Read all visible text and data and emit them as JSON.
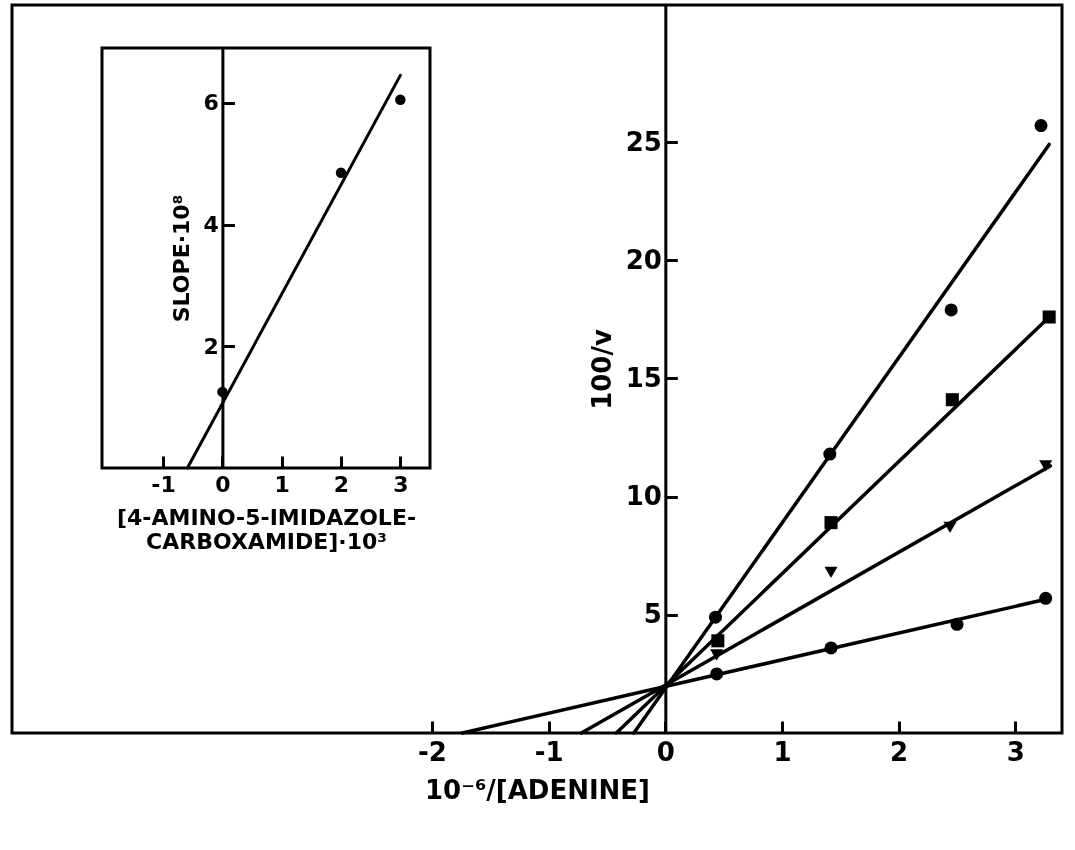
{
  "chart_data": [
    {
      "type": "scatter",
      "xlabel": "10⁻⁶/[ADENINE]",
      "ylabel": "100/v",
      "xlim": [
        -5.6,
        3.4
      ],
      "xticks": [
        -2,
        -1,
        0,
        1,
        2,
        3
      ],
      "ylim": [
        0,
        30.8
      ],
      "yticks": [
        5,
        10,
        15,
        20,
        25
      ],
      "series": [
        {
          "type": "scatter",
          "marker": "circle",
          "color": "#000000",
          "x": [
            0.43,
            1.41,
            2.45,
            3.22
          ],
          "values": [
            4.9,
            11.8,
            17.9,
            25.7
          ]
        },
        {
          "type": "scatter",
          "marker": "square",
          "color": "#000000",
          "x": [
            0.45,
            1.42,
            2.46,
            3.29
          ],
          "values": [
            3.9,
            8.9,
            14.1,
            17.6
          ]
        },
        {
          "type": "scatter",
          "marker": "triangle",
          "color": "#000000",
          "x": [
            0.44,
            1.42,
            2.44,
            3.26
          ],
          "values": [
            3.3,
            6.8,
            8.7,
            11.3
          ]
        },
        {
          "type": "scatter",
          "marker": "circle",
          "color": "#000000",
          "x": [
            0.44,
            1.42,
            2.5,
            3.26
          ],
          "values": [
            2.5,
            3.6,
            4.6,
            5.7
          ]
        },
        {
          "type": "line",
          "color": "#000000",
          "x": [
            -0.27,
            3.29
          ],
          "values": [
            0,
            24.9
          ]
        },
        {
          "type": "line",
          "color": "#000000",
          "x": [
            -0.42,
            3.29
          ],
          "values": [
            0,
            17.6
          ]
        },
        {
          "type": "line",
          "color": "#000000",
          "x": [
            -0.72,
            3.3
          ],
          "values": [
            0,
            11.3
          ]
        },
        {
          "type": "line",
          "color": "#000000",
          "x": [
            -1.74,
            3.3
          ],
          "values": [
            0,
            5.7
          ]
        }
      ]
    },
    {
      "type": "scatter",
      "xlabel": "[4-AMINO-5-IMIDAZOLE-CARBOXAMIDE]·10³",
      "ylabel": "SLOPE·10⁸",
      "xlim": [
        -2.03,
        3.5
      ],
      "xticks": [
        -1,
        0,
        1,
        2,
        3
      ],
      "ylim": [
        0,
        6.9
      ],
      "yticks": [
        2,
        4,
        6
      ],
      "series": [
        {
          "type": "scatter",
          "marker": "circle",
          "color": "#000000",
          "x": [
            0,
            2,
            3
          ],
          "values": [
            1.25,
            4.85,
            6.05
          ]
        },
        {
          "type": "line",
          "color": "#000000",
          "x": [
            -0.59,
            3.0
          ],
          "values": [
            0,
            6.45
          ]
        }
      ]
    }
  ]
}
